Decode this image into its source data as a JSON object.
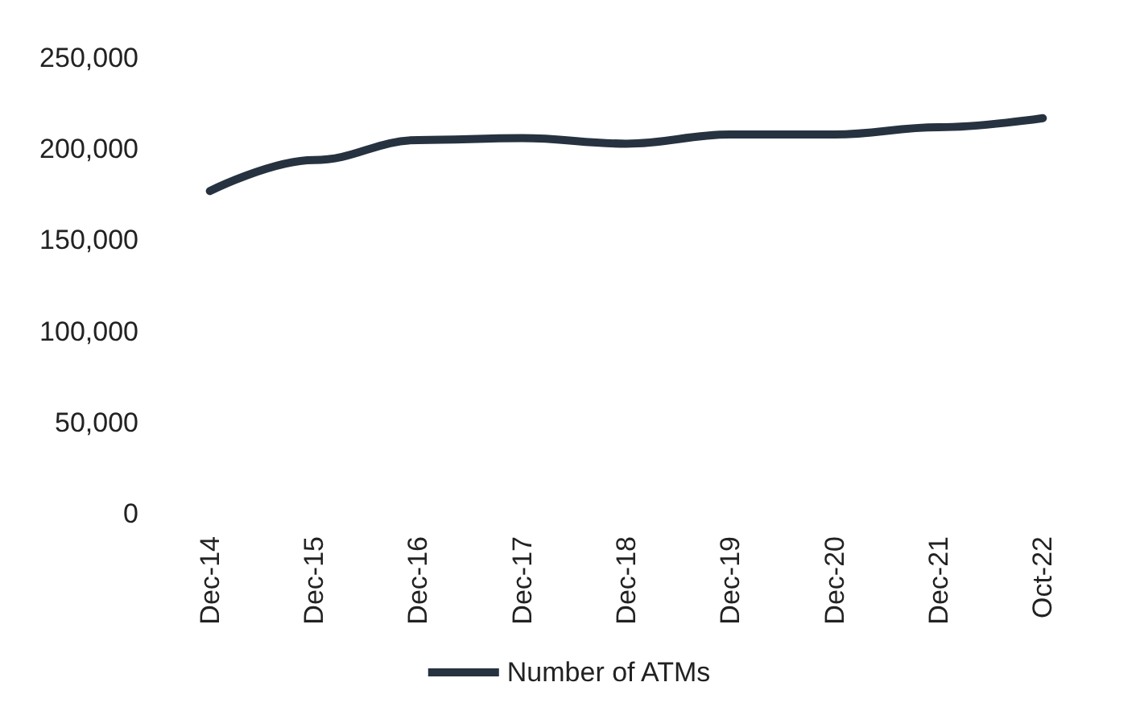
{
  "chart_data": {
    "type": "line",
    "categories": [
      "Dec-14",
      "Dec-15",
      "Dec-16",
      "Dec-17",
      "Dec-18",
      "Dec-19",
      "Dec-20",
      "Dec-21",
      "Oct-22"
    ],
    "series": [
      {
        "name": "Number of ATMs",
        "color": "#263240",
        "values": [
          177000,
          194000,
          205000,
          206000,
          203000,
          208000,
          208000,
          212000,
          217000
        ]
      }
    ],
    "ylim": [
      0,
      250000
    ],
    "yticks": [
      0,
      {
        "value": 50000,
        "label": "50,000"
      },
      {
        "value": 100000,
        "label": "100,000"
      },
      {
        "value": 150000,
        "label": "150,000"
      },
      {
        "value": 200000,
        "label": "200,000"
      },
      {
        "value": 250000,
        "label": "250,000"
      }
    ],
    "grid": false,
    "legend": "bottom",
    "marker": "none"
  }
}
